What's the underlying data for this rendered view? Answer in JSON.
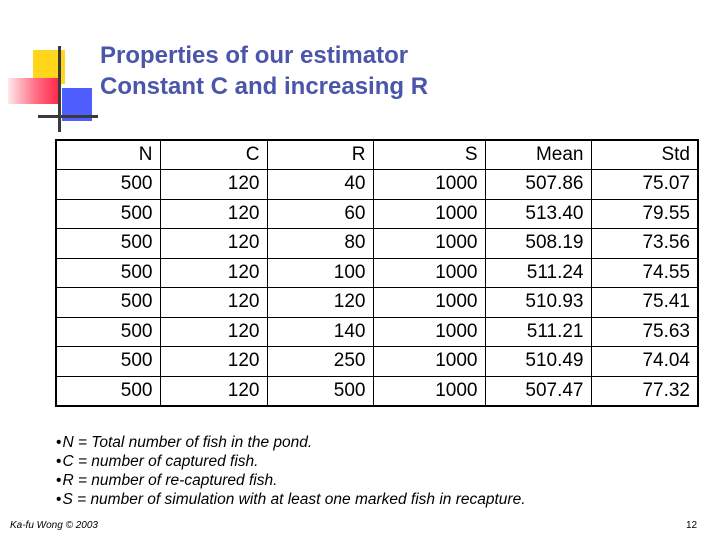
{
  "slide": {
    "title_line1": "Properties of our estimator",
    "title_line2": "Constant C and increasing R"
  },
  "table": {
    "headers": [
      "N",
      "C",
      "R",
      "S",
      "Mean",
      "Std"
    ],
    "rows": [
      [
        "500",
        "120",
        "40",
        "1000",
        "507.86",
        "75.07"
      ],
      [
        "500",
        "120",
        "60",
        "1000",
        "513.40",
        "79.55"
      ],
      [
        "500",
        "120",
        "80",
        "1000",
        "508.19",
        "73.56"
      ],
      [
        "500",
        "120",
        "100",
        "1000",
        "511.24",
        "74.55"
      ],
      [
        "500",
        "120",
        "120",
        "1000",
        "510.93",
        "75.41"
      ],
      [
        "500",
        "120",
        "140",
        "1000",
        "511.21",
        "75.63"
      ],
      [
        "500",
        "120",
        "250",
        "1000",
        "510.49",
        "74.04"
      ],
      [
        "500",
        "120",
        "500",
        "1000",
        "507.47",
        "77.32"
      ]
    ]
  },
  "notes": [
    "N = Total number of fish in the pond.",
    "C = number of captured fish.",
    "R = number of re-captured fish.",
    "S = number of simulation with at least one marked fish in recapture."
  ],
  "bullet_char": "•",
  "footer": {
    "author": "Ka-fu Wong © 2003",
    "page_number": "12"
  }
}
